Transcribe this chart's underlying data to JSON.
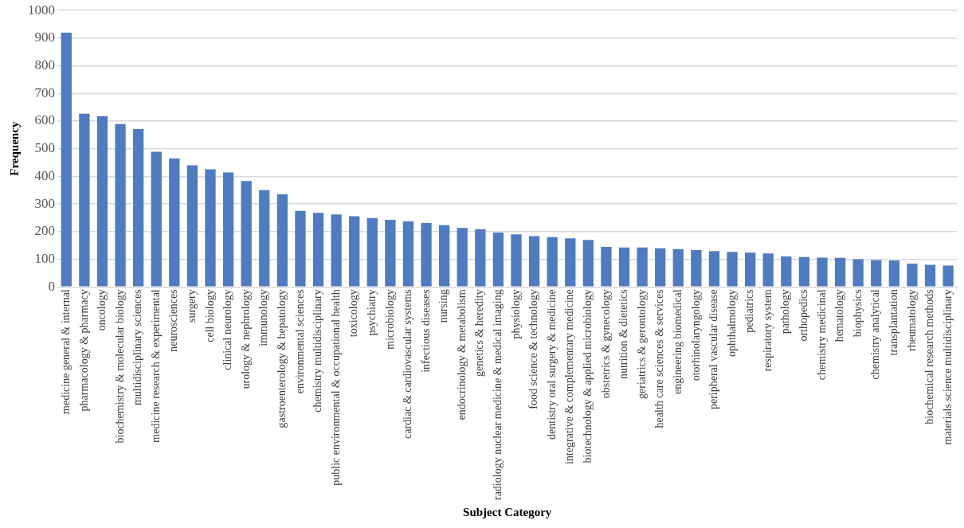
{
  "chart_data": {
    "type": "bar",
    "xlabel": "Subject Category",
    "ylabel": "Frequency",
    "categories": [
      "medicine general & internal",
      "pharmacology & pharmacy",
      "oncology",
      "biochemistry & molecular biology",
      "multidisciplinary sciences",
      "medicine research & experimental",
      "neurosciences",
      "surgery",
      "cell biology",
      "clinical neurology",
      "urology & nephrology",
      "immunology",
      "gastroenterology & hepatology",
      "environmental sciences",
      "chemistry multidisciplinary",
      "public environmental & occupational health",
      "toxicology",
      "psychiatry",
      "microbiology",
      "cardiac & cardiovascular systems",
      "infectious diseases",
      "nursing",
      "endocrinology & metabolism",
      "genetics & heredity",
      "radiology nuclear medicine & medical imaging",
      "physiology",
      "food science & technology",
      "dentistry oral surgery & medicine",
      "integrative & complementary medicine",
      "biotechnology & applied microbiology",
      "obstetrics & gynecology",
      "nutrition & dietetics",
      "geriatrics & gerontology",
      "health care sciences & services",
      "engineering biomedical",
      "otorhinolaryngology",
      "peripheral vascular disease",
      "ophthalmology",
      "pediatrics",
      "respiratory system",
      "pathology",
      "orthopedics",
      "chemistry medicinal",
      "hematology",
      "biophysics",
      "chemistry analytical",
      "transplantation",
      "rheumatology",
      "biochemical research methods",
      "materials science multidisciplinary"
    ],
    "values": [
      920,
      627,
      617,
      589,
      571,
      489,
      465,
      440,
      426,
      414,
      383,
      350,
      335,
      275,
      268,
      262,
      256,
      249,
      243,
      237,
      231,
      223,
      213,
      209,
      197,
      190,
      184,
      180,
      176,
      170,
      145,
      143,
      143,
      140,
      137,
      133,
      130,
      127,
      124,
      121,
      110,
      108,
      106,
      105,
      100,
      97,
      96,
      84,
      80,
      77
    ],
    "color": "#4f7cc0",
    "ylim": [
      0,
      1000
    ],
    "yticks": [
      0,
      100,
      200,
      300,
      400,
      500,
      600,
      700,
      800,
      900,
      1000
    ],
    "grid": "y"
  }
}
